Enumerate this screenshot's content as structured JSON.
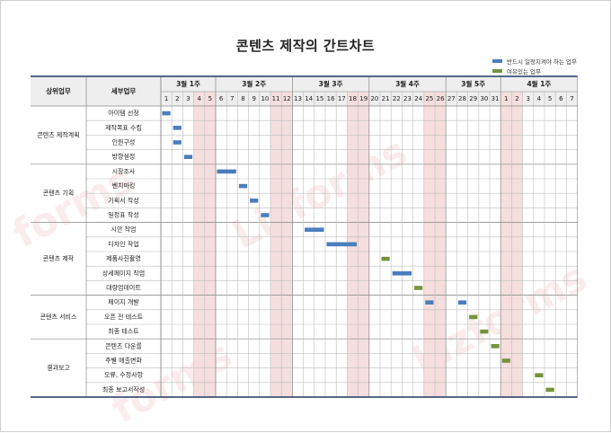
{
  "title": "콘텐츠 제작의 간트차트",
  "legend": [
    {
      "label": "반드시 일정지켜야 하는 업무",
      "color": "#4a7ebb"
    },
    {
      "label": "여유있는 업무",
      "color": "#77923c"
    }
  ],
  "colors": {
    "required": "#4a7ebb",
    "flexible": "#77923c",
    "weekend": "#f5dede",
    "header_bg": "#eeeeee",
    "navy": "#1f3864"
  },
  "headers": {
    "category": "상위업무",
    "task": "세부업무"
  },
  "weeks": [
    {
      "label": "3월 1주",
      "span": 5
    },
    {
      "label": "3월 2주",
      "span": 7
    },
    {
      "label": "3월 3주",
      "span": 7
    },
    {
      "label": "3월 4주",
      "span": 7
    },
    {
      "label": "3월 5주",
      "span": 5
    },
    {
      "label": "4월 1주",
      "span": 7
    }
  ],
  "days": [
    "1",
    "2",
    "3",
    "4",
    "5",
    "6",
    "7",
    "8",
    "9",
    "10",
    "11",
    "12",
    "13",
    "14",
    "15",
    "16",
    "17",
    "18",
    "19",
    "20",
    "21",
    "22",
    "23",
    "24",
    "25",
    "26",
    "27",
    "28",
    "29",
    "30",
    "31",
    "1",
    "2",
    "3",
    "4",
    "5",
    "6",
    "7"
  ],
  "weekend_days": [
    3,
    4,
    10,
    11,
    17,
    18,
    24,
    25,
    31,
    32
  ],
  "categories": [
    {
      "label": "콘텐츠 제작계획",
      "rows": 4
    },
    {
      "label": "콘텐츠 기획",
      "rows": 4
    },
    {
      "label": "콘텐츠 제작",
      "rows": 5
    },
    {
      "label": "콘텐츠 서비스",
      "rows": 3
    },
    {
      "label": "결과보고",
      "rows": 4
    }
  ],
  "tasks": [
    {
      "name": "아이템 선정",
      "bars": [
        {
          "start": 0,
          "len": 1,
          "type": "required"
        }
      ]
    },
    {
      "name": "제작목표 수립",
      "bars": [
        {
          "start": 1,
          "len": 1,
          "type": "required"
        }
      ]
    },
    {
      "name": "인원구성",
      "bars": [
        {
          "start": 1,
          "len": 1,
          "type": "required"
        }
      ]
    },
    {
      "name": "방향설정",
      "bars": [
        {
          "start": 2,
          "len": 1,
          "type": "required"
        }
      ]
    },
    {
      "name": "시장조사",
      "bars": [
        {
          "start": 5,
          "len": 2,
          "type": "required"
        }
      ]
    },
    {
      "name": "벤치마킹",
      "bars": [
        {
          "start": 7,
          "len": 1,
          "type": "required"
        }
      ]
    },
    {
      "name": "기획서 작성",
      "bars": [
        {
          "start": 8,
          "len": 1,
          "type": "required"
        }
      ]
    },
    {
      "name": "일정표 작성",
      "bars": [
        {
          "start": 9,
          "len": 1,
          "type": "required"
        }
      ]
    },
    {
      "name": "시안 작업",
      "bars": [
        {
          "start": 13,
          "len": 2,
          "type": "required"
        }
      ]
    },
    {
      "name": "디자인 작업",
      "bars": [
        {
          "start": 15,
          "len": 3,
          "type": "required"
        }
      ]
    },
    {
      "name": "제품사진촬영",
      "bars": [
        {
          "start": 20,
          "len": 1,
          "type": "flexible"
        }
      ]
    },
    {
      "name": "상세페이지 작업",
      "bars": [
        {
          "start": 21,
          "len": 2,
          "type": "required"
        }
      ]
    },
    {
      "name": "대량업데이트",
      "bars": [
        {
          "start": 23,
          "len": 1,
          "type": "flexible"
        }
      ]
    },
    {
      "name": "페이지 개발",
      "bars": [
        {
          "start": 24,
          "len": 1,
          "type": "required"
        },
        {
          "start": 27,
          "len": 1,
          "type": "required"
        }
      ]
    },
    {
      "name": "오픈 전 테스트",
      "bars": [
        {
          "start": 28,
          "len": 1,
          "type": "flexible"
        }
      ]
    },
    {
      "name": "최종 테스트",
      "bars": [
        {
          "start": 29,
          "len": 1,
          "type": "flexible"
        }
      ]
    },
    {
      "name": "콘텐츠 다운률",
      "bars": [
        {
          "start": 30,
          "len": 1,
          "type": "flexible"
        }
      ]
    },
    {
      "name": "주별 매출변화",
      "bars": [
        {
          "start": 31,
          "len": 1,
          "type": "flexible"
        }
      ]
    },
    {
      "name": "오류, 수정사항",
      "bars": [
        {
          "start": 34,
          "len": 1,
          "type": "flexible"
        }
      ]
    },
    {
      "name": "최종 보고서작성",
      "bars": [
        {
          "start": 35,
          "len": 1,
          "type": "flexible"
        }
      ]
    }
  ]
}
